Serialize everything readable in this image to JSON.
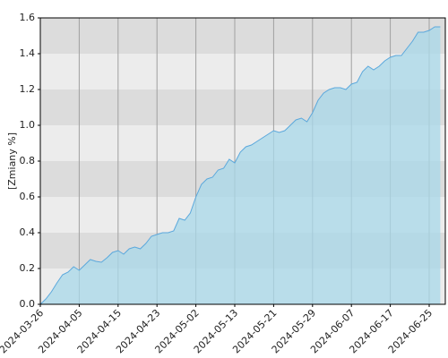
{
  "chart_data": {
    "type": "area",
    "y_label": "[Zmiany %]",
    "categories": [
      "2024-03-26",
      null,
      null,
      null,
      null,
      null,
      null,
      "2024-04-05",
      null,
      null,
      null,
      null,
      null,
      null,
      "2024-04-15",
      null,
      null,
      null,
      null,
      null,
      null,
      "2024-04-23",
      null,
      null,
      null,
      null,
      null,
      null,
      "2024-05-02",
      null,
      null,
      null,
      null,
      null,
      null,
      "2024-05-13",
      null,
      null,
      null,
      null,
      null,
      null,
      "2024-05-21",
      null,
      null,
      null,
      null,
      null,
      null,
      "2024-05-29",
      null,
      null,
      null,
      null,
      null,
      null,
      "2024-06-07",
      null,
      null,
      null,
      null,
      null,
      null,
      "2024-06-17",
      null,
      null,
      null,
      null,
      null,
      null,
      "2024-06-25",
      null,
      null
    ],
    "values": [
      0.0,
      0.03,
      0.07,
      0.12,
      0.165,
      0.18,
      0.21,
      0.19,
      0.22,
      0.25,
      0.24,
      0.235,
      0.26,
      0.29,
      0.3,
      0.28,
      0.31,
      0.32,
      0.31,
      0.34,
      0.38,
      0.39,
      0.4,
      0.4,
      0.41,
      0.48,
      0.47,
      0.51,
      0.6,
      0.67,
      0.7,
      0.71,
      0.75,
      0.76,
      0.81,
      0.79,
      0.85,
      0.88,
      0.89,
      0.91,
      0.93,
      0.95,
      0.97,
      0.96,
      0.97,
      1.0,
      1.03,
      1.04,
      1.02,
      1.07,
      1.14,
      1.18,
      1.2,
      1.21,
      1.21,
      1.2,
      1.23,
      1.24,
      1.3,
      1.33,
      1.31,
      1.33,
      1.36,
      1.38,
      1.39,
      1.39,
      1.43,
      1.47,
      1.52,
      1.52,
      1.53,
      1.55,
      1.55
    ],
    "color": "#a8d8ea",
    "line_color": "#5ba8dc",
    "ylim": [
      0,
      1.6
    ],
    "yticks": [
      {
        "value": 0,
        "label": "0.0"
      },
      {
        "value": 0.2,
        "label": "0.2"
      },
      {
        "value": 0.4,
        "label": "0.4"
      },
      {
        "value": 0.6,
        "label": "0.6"
      },
      {
        "value": 0.8,
        "label": "0.8"
      },
      {
        "value": 1.0,
        "label": "1.0"
      },
      {
        "value": 1.2,
        "label": "1.2"
      },
      {
        "value": 1.4,
        "label": "1.4"
      },
      {
        "value": 1.6,
        "label": "1.6"
      }
    ],
    "grid": true,
    "band_colors": [
      "#ececec",
      "#dcdcdc"
    ]
  }
}
